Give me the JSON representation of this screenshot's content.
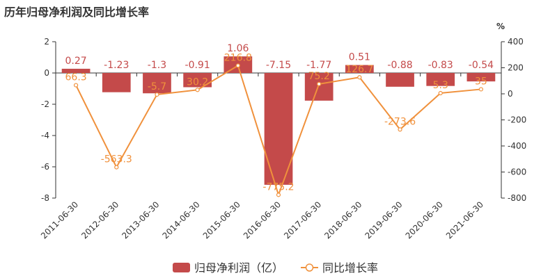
{
  "title": "历年归母净利润及同比增长率",
  "chart_data": {
    "type": "bar",
    "categories": [
      "2011-06-30",
      "2012-06-30",
      "2013-06-30",
      "2014-06-30",
      "2015-06-30",
      "2016-06-30",
      "2017-06-30",
      "2018-06-30",
      "2019-06-30",
      "2020-06-30",
      "2021-06-30"
    ],
    "series": [
      {
        "name": "归母净利润（亿）",
        "type": "bar",
        "axis": "left",
        "color": "#c44a4a",
        "values": [
          0.27,
          -1.23,
          -1.3,
          -0.91,
          1.06,
          -7.15,
          -1.77,
          0.51,
          -0.88,
          -0.83,
          -0.54
        ],
        "labels": [
          "0.27",
          "-1.23",
          "-1.3",
          "-0.91",
          "1.06",
          "-7.15",
          "-1.77",
          "0.51",
          "-0.88",
          "-0.83",
          "-0.54"
        ]
      },
      {
        "name": "同比增长率",
        "type": "line",
        "axis": "right",
        "color": "#f0913c",
        "values": [
          66.3,
          -563.3,
          -5.7,
          30.2,
          216.8,
          -775.2,
          75.2,
          126.7,
          -273.6,
          5.3,
          35
        ],
        "labels": [
          "66.3",
          "-563.3",
          "-5.7",
          "30.2",
          "216.8",
          "-775.2",
          "75.2",
          "126.7",
          "-273.6",
          "5.3",
          "35"
        ]
      }
    ],
    "left_axis": {
      "ylim": [
        -8,
        2
      ],
      "ticks": [
        "2",
        "0",
        "-2",
        "-4",
        "-6",
        "-8"
      ]
    },
    "right_axis": {
      "ylim": [
        -800,
        400
      ],
      "ticks": [
        "400",
        "200",
        "0",
        "-200",
        "-400",
        "-600",
        "-800"
      ],
      "unit": "%"
    },
    "legend_position": "bottom-center",
    "grid": false
  }
}
